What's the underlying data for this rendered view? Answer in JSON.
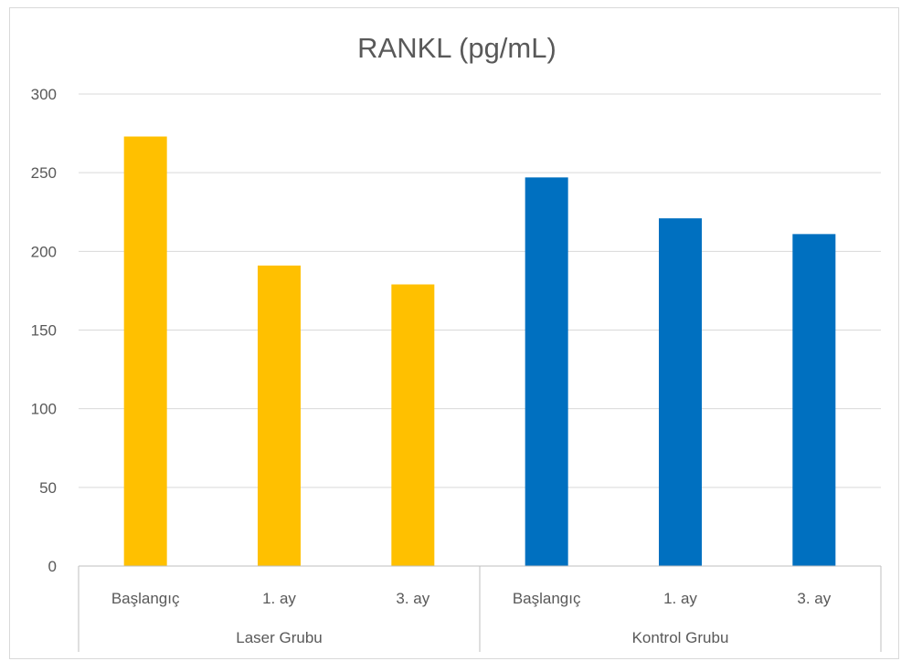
{
  "chart_data": {
    "type": "bar",
    "title": "RANKL (pg/mL)",
    "xlabel": "",
    "ylabel": "",
    "ylim": [
      0,
      300
    ],
    "yticks": [
      0,
      50,
      100,
      150,
      200,
      250,
      300
    ],
    "grid": true,
    "legend": "none",
    "groups": [
      {
        "label": "Laser Grubu",
        "color": "#FFC000",
        "categories": [
          "Başlangıç",
          "1.    ay",
          "3.  ay"
        ],
        "values": [
          273,
          191,
          179
        ]
      },
      {
        "label": "Kontrol Grubu",
        "color": "#0070C0",
        "categories": [
          "Başlangıç",
          "1. ay",
          "3. ay"
        ],
        "values": [
          247,
          221,
          211
        ]
      }
    ]
  }
}
